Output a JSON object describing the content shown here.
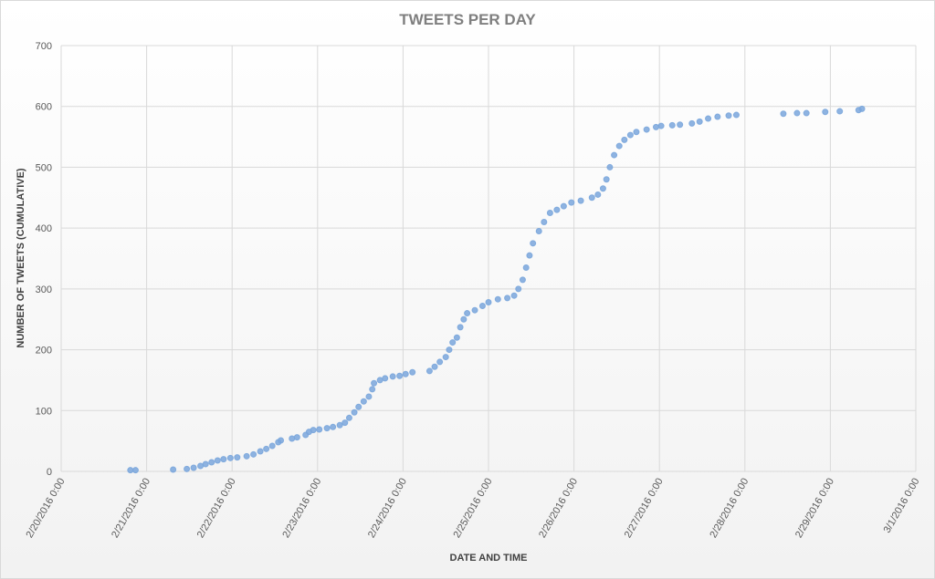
{
  "chart_data": {
    "type": "scatter",
    "title": "TWEETS PER DAY",
    "x_label": "DATE AND TIME",
    "y_label": "NUMBER OF TWEETS (CUMULATIVE)",
    "xlim": [
      42420,
      42430
    ],
    "ylim": [
      0,
      700
    ],
    "grid": true,
    "xticks": [
      {
        "value": 42420,
        "label": "2/20/2016 0:00"
      },
      {
        "value": 42421,
        "label": "2/21/2016 0:00"
      },
      {
        "value": 42422,
        "label": "2/22/2016 0:00"
      },
      {
        "value": 42423,
        "label": "2/23/2016 0:00"
      },
      {
        "value": 42424,
        "label": "2/24/2016 0:00"
      },
      {
        "value": 42425,
        "label": "2/25/2016 0:00"
      },
      {
        "value": 42426,
        "label": "2/26/2016 0:00"
      },
      {
        "value": 42427,
        "label": "2/27/2016 0:00"
      },
      {
        "value": 42428,
        "label": "2/28/2016 0:00"
      },
      {
        "value": 42429,
        "label": "2/29/2016 0:00"
      },
      {
        "value": 42430,
        "label": "3/1/2016 0:00"
      }
    ],
    "yticks": [
      0,
      100,
      200,
      300,
      400,
      500,
      600,
      700
    ],
    "series": [
      {
        "color": "#7aa6dc",
        "x": [
          42420.81,
          42420.87,
          42421.31,
          42421.47,
          42421.55,
          42421.63,
          42421.69,
          42421.76,
          42421.83,
          42421.9,
          42421.98,
          42422.06,
          42422.17,
          42422.25,
          42422.33,
          42422.4,
          42422.47,
          42422.54,
          42422.57,
          42422.7,
          42422.76,
          42422.86,
          42422.9,
          42422.95,
          42423.02,
          42423.11,
          42423.18,
          42423.26,
          42423.32,
          42423.37,
          42423.43,
          42423.48,
          42423.54,
          42423.6,
          42423.64,
          42423.66,
          42423.73,
          42423.79,
          42423.88,
          42423.96,
          42424.03,
          42424.11,
          42424.31,
          42424.37,
          42424.43,
          42424.5,
          42424.54,
          42424.58,
          42424.63,
          42424.67,
          42424.71,
          42424.75,
          42424.84,
          42424.93,
          42425.0,
          42425.11,
          42425.22,
          42425.3,
          42425.35,
          42425.4,
          42425.44,
          42425.48,
          42425.52,
          42425.59,
          42425.65,
          42425.72,
          42425.8,
          42425.88,
          42425.97,
          42426.08,
          42426.21,
          42426.28,
          42426.34,
          42426.38,
          42426.42,
          42426.47,
          42426.53,
          42426.59,
          42426.66,
          42426.73,
          42426.85,
          42426.96,
          42427.02,
          42427.15,
          42427.24,
          42427.38,
          42427.47,
          42427.57,
          42427.68,
          42427.81,
          42427.9,
          42428.45,
          42428.61,
          42428.72,
          42428.94,
          42429.11,
          42429.33,
          42429.37
        ],
        "values": [
          2,
          2,
          3,
          4,
          6,
          9,
          12,
          15,
          18,
          20,
          22,
          23,
          25,
          28,
          33,
          37,
          42,
          48,
          51,
          54,
          56,
          60,
          65,
          68,
          69,
          71,
          73,
          76,
          80,
          88,
          97,
          106,
          115,
          123,
          135,
          145,
          150,
          153,
          156,
          157,
          160,
          163,
          165,
          172,
          180,
          188,
          200,
          212,
          220,
          237,
          250,
          260,
          265,
          272,
          278,
          283,
          285,
          289,
          300,
          315,
          335,
          355,
          375,
          395,
          410,
          425,
          430,
          436,
          442,
          445,
          450,
          455,
          465,
          480,
          500,
          520,
          535,
          545,
          553,
          558,
          562,
          566,
          568,
          569,
          570,
          572,
          575,
          580,
          583,
          585,
          586,
          588,
          589,
          589,
          591,
          592,
          594,
          596
        ]
      }
    ]
  }
}
